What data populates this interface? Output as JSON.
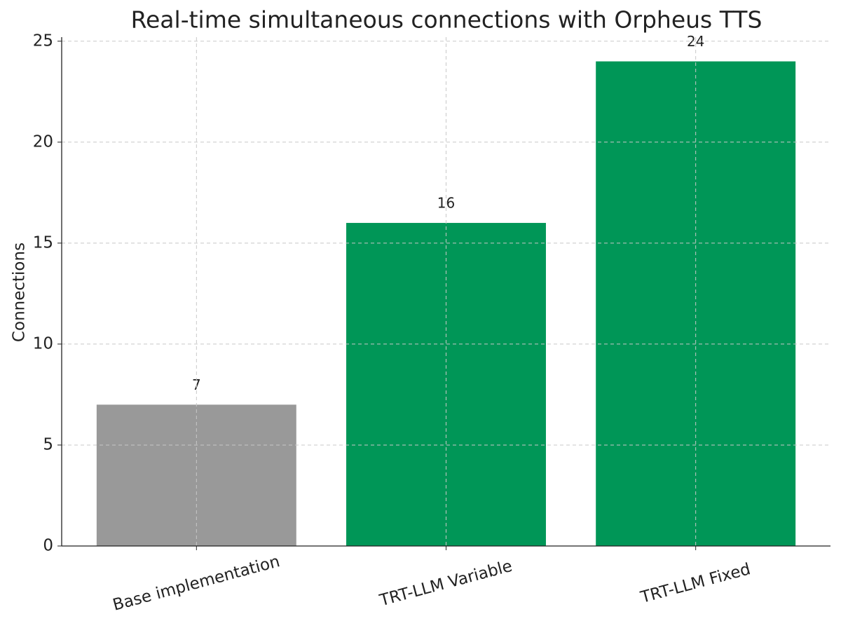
{
  "chart_data": {
    "type": "bar",
    "title": "Real-time simultaneous connections with Orpheus TTS",
    "y_label": "Connections",
    "categories": [
      "Base implementation",
      "TRT-LLM Variable",
      "TRT-LLM Fixed"
    ],
    "values": [
      7,
      16,
      24
    ],
    "colors": [
      "#999999",
      "#009657",
      "#009657"
    ],
    "ylim": [
      0,
      25.2
    ],
    "yticks": [
      0,
      5,
      10,
      15,
      20,
      25
    ],
    "grid": true
  }
}
